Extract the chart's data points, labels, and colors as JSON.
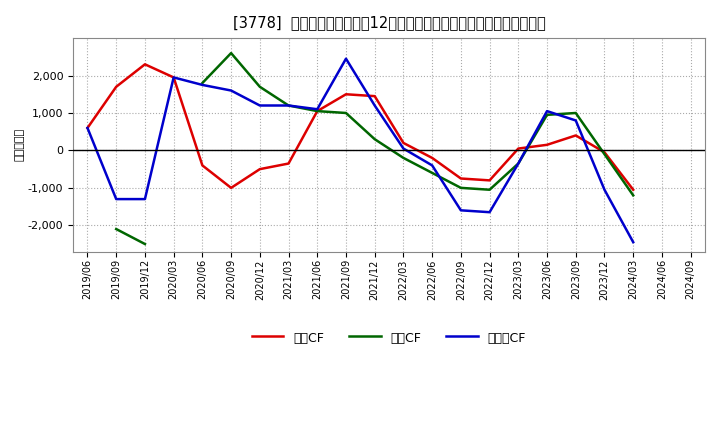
{
  "title": "[3778]  キャッシュフローの12か月移動合計の対前年同期増減額の推移",
  "ylabel": "（百万円）",
  "background_color": "#ffffff",
  "plot_bg_color": "#ffffff",
  "grid_color": "#aaaaaa",
  "dates": [
    "2019/06",
    "2019/09",
    "2019/12",
    "2020/03",
    "2020/06",
    "2020/09",
    "2020/12",
    "2021/03",
    "2021/06",
    "2021/09",
    "2021/12",
    "2022/03",
    "2022/06",
    "2022/09",
    "2022/12",
    "2023/03",
    "2023/06",
    "2023/09",
    "2023/12",
    "2024/03",
    "2024/06",
    "2024/09"
  ],
  "eigyo_cf": [
    600,
    1700,
    2300,
    1950,
    -400,
    -1000,
    -500,
    -350,
    1050,
    1500,
    1450,
    200,
    -200,
    -750,
    -800,
    50,
    150,
    400,
    -50,
    -1050,
    null,
    null
  ],
  "toshi_cf": [
    null,
    -2100,
    -2500,
    null,
    1800,
    2600,
    1700,
    1200,
    1050,
    1000,
    300,
    -200,
    -600,
    -1000,
    -1050,
    -350,
    950,
    1000,
    -100,
    -1200,
    null,
    null
  ],
  "free_cf": [
    600,
    -1300,
    -1300,
    1950,
    1750,
    1600,
    1200,
    1200,
    1100,
    2450,
    1200,
    50,
    -400,
    -1600,
    -1650,
    -350,
    1050,
    800,
    -1050,
    -2450,
    null,
    null
  ],
  "eigyo_color": "#dd0000",
  "toshi_color": "#006600",
  "free_color": "#0000cc",
  "ylim": [
    -2700,
    3000
  ],
  "yticks": [
    -2000,
    -1000,
    0,
    1000,
    2000
  ],
  "legend_labels": [
    "営業CF",
    "投資CF",
    "フリーCF"
  ]
}
